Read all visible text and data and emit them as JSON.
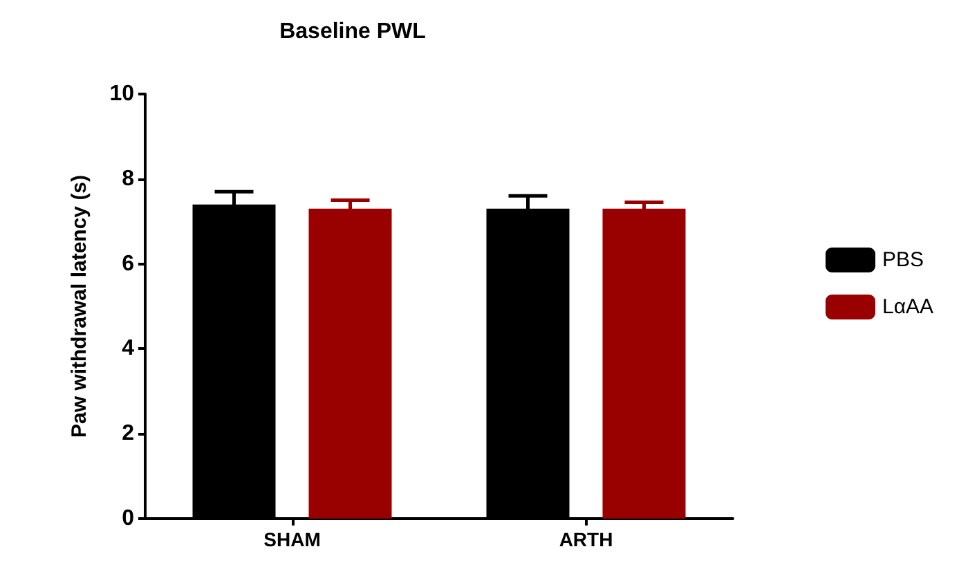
{
  "chart_data": {
    "type": "bar",
    "title": "Baseline PWL",
    "ylabel": "Paw withdrawal latency (s)",
    "categories": [
      "SHAM",
      "ARTH"
    ],
    "series": [
      {
        "name": "PBS",
        "color": "#000000",
        "values": [
          7.4,
          7.3
        ],
        "errors": [
          0.3,
          0.3
        ]
      },
      {
        "name": "LαAA",
        "color": "#990000",
        "values": [
          7.3,
          7.3
        ],
        "errors": [
          0.2,
          0.15
        ]
      }
    ],
    "ylim": [
      0,
      10
    ],
    "yticks": [
      0,
      2,
      4,
      6,
      8,
      10
    ],
    "grid": false,
    "legend": "right"
  }
}
